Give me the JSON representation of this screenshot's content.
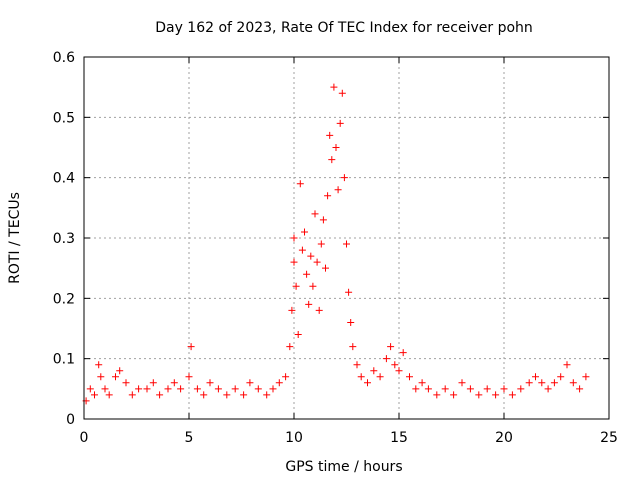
{
  "chart_data": {
    "type": "scatter",
    "title": "Day 162 of 2023, Rate Of TEC Index for receiver pohn",
    "xlabel": "GPS time / hours",
    "ylabel": "ROTI / TECUs",
    "xlim": [
      0,
      25
    ],
    "ylim": [
      0,
      0.6
    ],
    "x_ticks": [
      "0",
      "5",
      "10",
      "15",
      "20",
      "25"
    ],
    "y_ticks": [
      "0",
      "0.1",
      "0.2",
      "0.3",
      "0.4",
      "0.5",
      "0.6"
    ],
    "x_tick_values": [
      0,
      5,
      10,
      15,
      20,
      25
    ],
    "y_tick_values": [
      0,
      0.1,
      0.2,
      0.3,
      0.4,
      0.5,
      0.6
    ],
    "grid": true,
    "marker": "+",
    "color": "#ff0000",
    "series": [
      {
        "name": "ROTI",
        "points": [
          [
            0.1,
            0.03
          ],
          [
            0.3,
            0.05
          ],
          [
            0.5,
            0.04
          ],
          [
            0.7,
            0.09
          ],
          [
            0.8,
            0.07
          ],
          [
            1.0,
            0.05
          ],
          [
            1.2,
            0.04
          ],
          [
            1.5,
            0.07
          ],
          [
            1.7,
            0.08
          ],
          [
            2.0,
            0.06
          ],
          [
            2.3,
            0.04
          ],
          [
            2.6,
            0.05
          ],
          [
            3.0,
            0.05
          ],
          [
            3.3,
            0.06
          ],
          [
            3.6,
            0.04
          ],
          [
            4.0,
            0.05
          ],
          [
            4.3,
            0.06
          ],
          [
            4.6,
            0.05
          ],
          [
            5.0,
            0.07
          ],
          [
            5.1,
            0.12
          ],
          [
            5.4,
            0.05
          ],
          [
            5.7,
            0.04
          ],
          [
            6.0,
            0.06
          ],
          [
            6.4,
            0.05
          ],
          [
            6.8,
            0.04
          ],
          [
            7.2,
            0.05
          ],
          [
            7.6,
            0.04
          ],
          [
            7.9,
            0.06
          ],
          [
            8.3,
            0.05
          ],
          [
            8.7,
            0.04
          ],
          [
            9.0,
            0.05
          ],
          [
            9.3,
            0.06
          ],
          [
            9.6,
            0.07
          ],
          [
            9.8,
            0.12
          ],
          [
            9.9,
            0.18
          ],
          [
            10.0,
            0.26
          ],
          [
            10.0,
            0.3
          ],
          [
            10.1,
            0.22
          ],
          [
            10.2,
            0.14
          ],
          [
            10.3,
            0.39
          ],
          [
            10.4,
            0.28
          ],
          [
            10.5,
            0.31
          ],
          [
            10.6,
            0.24
          ],
          [
            10.7,
            0.19
          ],
          [
            10.8,
            0.27
          ],
          [
            10.9,
            0.22
          ],
          [
            11.0,
            0.34
          ],
          [
            11.1,
            0.26
          ],
          [
            11.2,
            0.18
          ],
          [
            11.3,
            0.29
          ],
          [
            11.4,
            0.33
          ],
          [
            11.5,
            0.25
          ],
          [
            11.6,
            0.37
          ],
          [
            11.7,
            0.47
          ],
          [
            11.8,
            0.43
          ],
          [
            11.9,
            0.55
          ],
          [
            12.0,
            0.45
          ],
          [
            12.1,
            0.38
          ],
          [
            12.2,
            0.49
          ],
          [
            12.3,
            0.54
          ],
          [
            12.4,
            0.4
          ],
          [
            12.5,
            0.29
          ],
          [
            12.6,
            0.21
          ],
          [
            12.7,
            0.16
          ],
          [
            12.8,
            0.12
          ],
          [
            13.0,
            0.09
          ],
          [
            13.2,
            0.07
          ],
          [
            13.5,
            0.06
          ],
          [
            13.8,
            0.08
          ],
          [
            14.1,
            0.07
          ],
          [
            14.4,
            0.1
          ],
          [
            14.6,
            0.12
          ],
          [
            14.8,
            0.09
          ],
          [
            15.0,
            0.08
          ],
          [
            15.2,
            0.11
          ],
          [
            15.5,
            0.07
          ],
          [
            15.8,
            0.05
          ],
          [
            16.1,
            0.06
          ],
          [
            16.4,
            0.05
          ],
          [
            16.8,
            0.04
          ],
          [
            17.2,
            0.05
          ],
          [
            17.6,
            0.04
          ],
          [
            18.0,
            0.06
          ],
          [
            18.4,
            0.05
          ],
          [
            18.8,
            0.04
          ],
          [
            19.2,
            0.05
          ],
          [
            19.6,
            0.04
          ],
          [
            20.0,
            0.05
          ],
          [
            20.4,
            0.04
          ],
          [
            20.8,
            0.05
          ],
          [
            21.2,
            0.06
          ],
          [
            21.5,
            0.07
          ],
          [
            21.8,
            0.06
          ],
          [
            22.1,
            0.05
          ],
          [
            22.4,
            0.06
          ],
          [
            22.7,
            0.07
          ],
          [
            23.0,
            0.09
          ],
          [
            23.3,
            0.06
          ],
          [
            23.6,
            0.05
          ],
          [
            23.9,
            0.07
          ]
        ]
      }
    ]
  }
}
